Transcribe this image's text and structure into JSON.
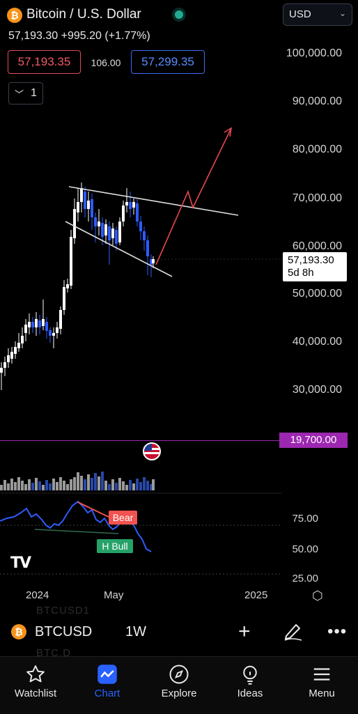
{
  "header": {
    "title": "Bitcoin / U.S. Dollar",
    "coin_symbol": "₿",
    "currency": "USD",
    "price": "57,193.30",
    "change": "+995.20 (+1.77%)",
    "bid": "57,193.35",
    "spread": "106.00",
    "ask": "57,299.35",
    "interval": "1"
  },
  "price_axis": {
    "ticks": [
      "100,000.00",
      "90,000.00",
      "80,000.00",
      "70,000.00",
      "60,000.00",
      "50,000.00",
      "40,000.00",
      "30,000.00"
    ],
    "current_price": "57,193.30",
    "countdown": "5d 8h",
    "marked_level": "19,700.00"
  },
  "rsi": {
    "ticks": [
      "75.00",
      "50.00",
      "25.00"
    ],
    "bear_label": "Bear",
    "bull_label": "H Bull"
  },
  "time_axis": {
    "labels": [
      "2024",
      "May",
      "2025"
    ]
  },
  "symbol_bar": {
    "symbol": "BTCUSD",
    "interval": "1W",
    "ghost_lines": [
      "BTCUSD1",
      "BTC.D"
    ]
  },
  "nav": [
    {
      "label": "Watchlist",
      "icon": "star-icon"
    },
    {
      "label": "Chart",
      "icon": "chart-icon",
      "active": true
    },
    {
      "label": "Explore",
      "icon": "compass-icon"
    },
    {
      "label": "Ideas",
      "icon": "bulb-icon"
    },
    {
      "label": "Menu",
      "icon": "menu-icon"
    }
  ],
  "colors": {
    "accent": "#2962ff",
    "bid": "#f05a65",
    "ask": "#5b8cff",
    "level": "#9c27b0",
    "bull_candle": "#ffffff",
    "bear_candle": "#2e5cff"
  }
}
